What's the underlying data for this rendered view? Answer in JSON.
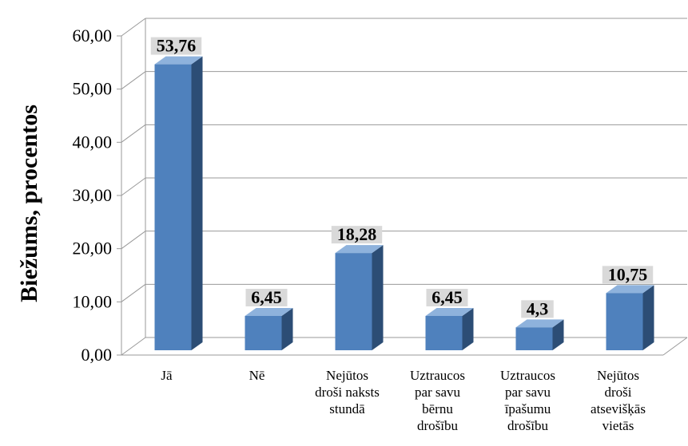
{
  "chart_data": {
    "type": "bar",
    "title": "",
    "xlabel": "",
    "ylabel": "Biežums, procentos",
    "ylim": [
      0,
      60
    ],
    "yticks": [
      "0,00",
      "10,00",
      "20,00",
      "30,00",
      "40,00",
      "50,00",
      "60,00"
    ],
    "grid": true,
    "legend": "none",
    "three_d": true,
    "categories": [
      [
        "Jā"
      ],
      [
        "Nē"
      ],
      [
        "Nejūtos",
        "droši naksts",
        "stundā"
      ],
      [
        "Uztraucos",
        "par savu",
        "bērnu",
        "drošību"
      ],
      [
        "Uztraucos",
        "par savu",
        "īpašumu",
        "drošību"
      ],
      [
        "Nejūtos",
        "droši",
        "atsevišķās",
        "vietās"
      ]
    ],
    "values": [
      53.76,
      6.45,
      18.28,
      6.45,
      4.3,
      10.75
    ],
    "data_labels": [
      "53,76",
      "6,45",
      "18,28",
      "6,45",
      "4,3",
      "10,75"
    ],
    "colors": {
      "bar_front": "#4f81bd",
      "bar_side": "#2c4d75",
      "bar_top": "#8eb2dc",
      "label_box": "#d9d9d9",
      "grid": "#999999",
      "floor": "#999999"
    }
  }
}
